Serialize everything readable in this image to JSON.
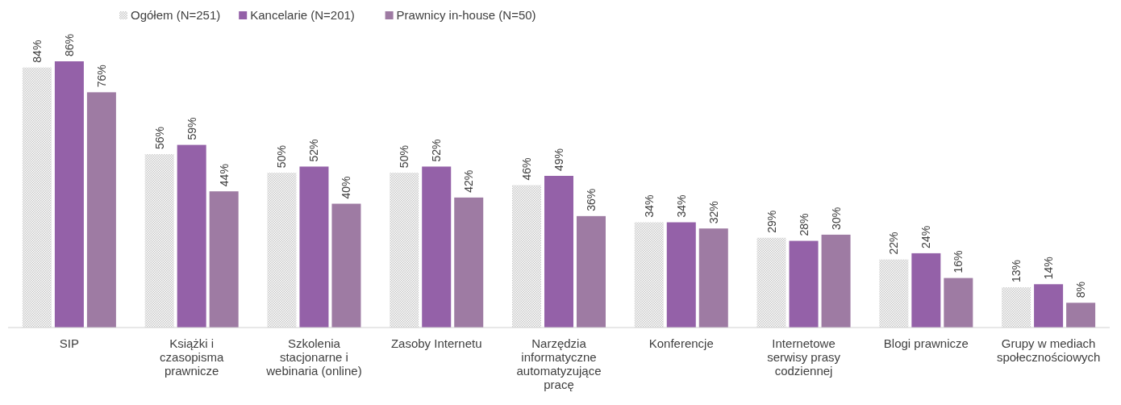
{
  "chart_data": {
    "type": "bar",
    "categories": [
      "SIP",
      "Książki i czasopisma prawnicze",
      "Szkolenia stacjonarne i webinaria (online)",
      "Zasoby Internetu",
      "Narzędzia informatyczne automatyzujące pracę",
      "Konferencje",
      "Internetowe serwisy prasy codziennej",
      "Blogi prawnicze",
      "Grupy w mediach społecznościowych"
    ],
    "series": [
      {
        "name": "Ogółem (N=251)",
        "color": "#c8c8c8",
        "values": [
          84,
          56,
          50,
          50,
          46,
          34,
          29,
          22,
          13
        ],
        "value_labels": [
          "84%",
          "56%",
          "50%",
          "50%",
          "46%",
          "34%",
          "29%",
          "22%",
          "13%"
        ]
      },
      {
        "name": "Kancelarie (N=201)",
        "color": "#9461a8",
        "values": [
          86,
          59,
          52,
          52,
          49,
          34,
          28,
          24,
          14
        ],
        "value_labels": [
          "86%",
          "59%",
          "52%",
          "52%",
          "49%",
          "34%",
          "28%",
          "24%",
          "14%"
        ]
      },
      {
        "name": "Prawnicy in-house (N=50)",
        "color": "#9e7ba3",
        "values": [
          76,
          44,
          40,
          42,
          36,
          32,
          30,
          16,
          8
        ],
        "value_labels": [
          "76%",
          "44%",
          "40%",
          "42%",
          "36%",
          "32%",
          "30%",
          "16%",
          "8%"
        ]
      }
    ],
    "legend": "top left",
    "grid": false
  }
}
